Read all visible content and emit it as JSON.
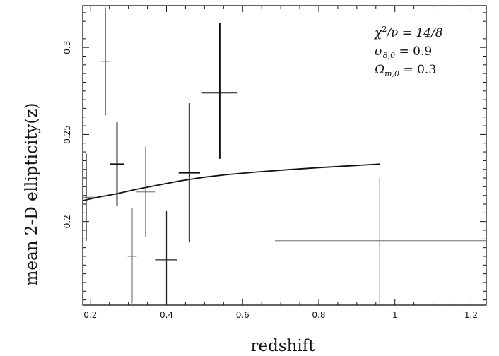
{
  "chart_data": {
    "type": "scatter",
    "title": "",
    "xlabel": "redshift",
    "ylabel": "mean 2-D ellipticity(z)",
    "xlim": [
      0.18,
      1.24
    ],
    "ylim": [
      0.152,
      0.324
    ],
    "x_ticks": [
      0.2,
      0.4,
      0.6,
      0.8,
      1.0,
      1.2
    ],
    "x_tick_labels": [
      "0.2",
      "0.4",
      "0.6",
      "0.8",
      "1",
      "1.2"
    ],
    "y_ticks": [
      0.2,
      0.25,
      0.3
    ],
    "y_tick_labels": [
      "0.2",
      "0.25",
      "0.3"
    ],
    "grid": false,
    "annotations": [
      {
        "base": "χ",
        "sup": "2",
        "rest": "/ν = 14/8"
      },
      {
        "base": "σ",
        "sub": "8,0",
        "rest": " = 0.9"
      },
      {
        "base": "Ω",
        "sub": "m,0",
        "rest": " = 0.3"
      }
    ],
    "points": [
      {
        "x": 0.19,
        "y": 0.214,
        "xerr": 0.022,
        "yerr_low": 0.025,
        "yerr_high": 0.025,
        "weight": "light"
      },
      {
        "x": 0.24,
        "y": 0.292,
        "xerr": 0.012,
        "yerr_low": 0.031,
        "yerr_high": 0.031,
        "weight": "light"
      },
      {
        "x": 0.27,
        "y": 0.233,
        "xerr": 0.019,
        "yerr_low": 0.024,
        "yerr_high": 0.024,
        "weight": "bold"
      },
      {
        "x": 0.31,
        "y": 0.18,
        "xerr": 0.012,
        "yerr_low": 0.027,
        "yerr_high": 0.028,
        "weight": "light"
      },
      {
        "x": 0.345,
        "y": 0.217,
        "xerr": 0.026,
        "yerr_low": 0.026,
        "yerr_high": 0.026,
        "weight": "light"
      },
      {
        "x": 0.4,
        "y": 0.178,
        "xerr": 0.028,
        "yerr_low": 0.027,
        "yerr_high": 0.028,
        "weight": "medium"
      },
      {
        "x": 0.46,
        "y": 0.228,
        "xerr": 0.028,
        "yerr_low": 0.04,
        "yerr_high": 0.04,
        "weight": "bold"
      },
      {
        "x": 0.54,
        "y": 0.274,
        "xerr": 0.047,
        "yerr_low": 0.038,
        "yerr_high": 0.04,
        "weight": "bold"
      },
      {
        "x": 0.96,
        "y": 0.189,
        "xerr_low": 0.275,
        "xerr_high": 0.28,
        "yerr_low": 0.036,
        "yerr_high": 0.036,
        "weight": "light"
      }
    ],
    "model_curve": {
      "x": [
        0.18,
        0.22,
        0.27,
        0.32,
        0.38,
        0.44,
        0.5,
        0.56,
        0.64,
        0.72,
        0.8,
        0.88,
        0.96
      ],
      "y": [
        0.212,
        0.214,
        0.216,
        0.2185,
        0.221,
        0.2235,
        0.2255,
        0.227,
        0.2285,
        0.2298,
        0.231,
        0.232,
        0.233
      ]
    }
  }
}
